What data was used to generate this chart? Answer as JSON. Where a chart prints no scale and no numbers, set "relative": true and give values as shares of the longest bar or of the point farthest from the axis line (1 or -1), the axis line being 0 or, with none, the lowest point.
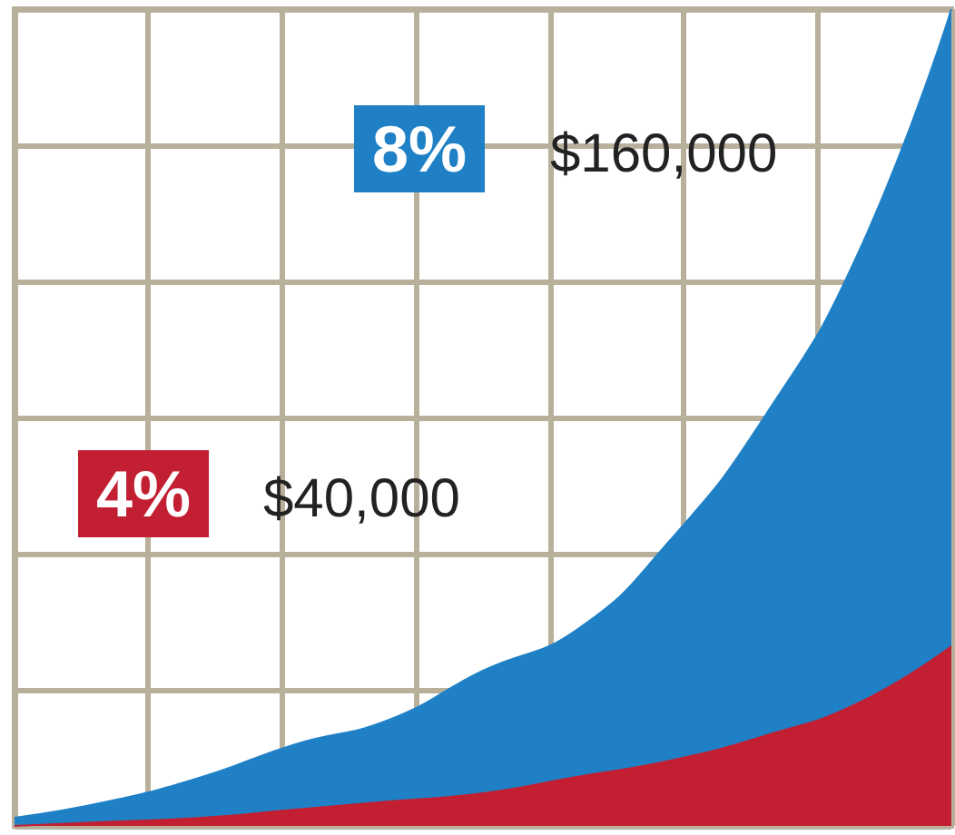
{
  "chart_data": {
    "type": "area",
    "relative": true,
    "grid": true,
    "legend": false,
    "categories": [
      null,
      null,
      null,
      null,
      null,
      null,
      null,
      null,
      null,
      null,
      null
    ],
    "series": [
      {
        "name": "8%",
        "color": "#1f80c6",
        "values": [
          0.01,
          0.03,
          0.06,
          0.1,
          0.13,
          0.19,
          0.24,
          0.35,
          0.5,
          0.7,
          1
        ]
      },
      {
        "name": "4%",
        "color": "#c21f32",
        "values": [
          0,
          0.005,
          0.01,
          0.02,
          0.03,
          0.04,
          0.06,
          0.08,
          0.11,
          0.15,
          0.22
        ]
      }
    ],
    "annotations": [
      "$160,000",
      "$40,000"
    ]
  }
}
